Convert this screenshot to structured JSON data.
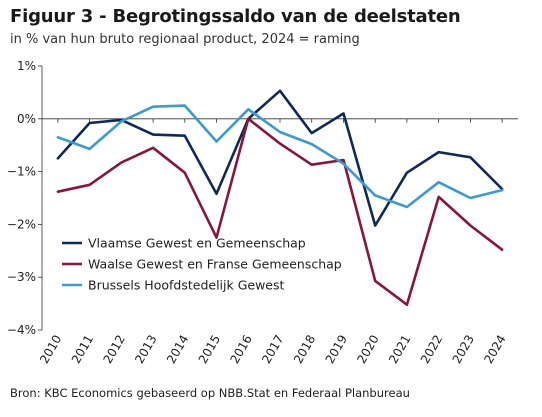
{
  "header": {
    "title": "Figuur 3 - Begrotingssaldo van de deelstaten",
    "subtitle": "in  % van hun bruto regionaal product, 2024 = raming"
  },
  "footer": {
    "source": "Bron: KBC Economics gebaseerd op NBB.Stat en Federaal Planbureau"
  },
  "chart_data": {
    "type": "line",
    "title": "Figuur 3 - Begrotingssaldo van de deelstaten",
    "subtitle": "in  % van hun bruto regionaal product, 2024 = raming",
    "x": [
      "2010",
      "2011",
      "2012",
      "2013",
      "2014",
      "2015",
      "2016",
      "2017",
      "2018",
      "2019",
      "2020",
      "2021",
      "2022",
      "2023",
      "2024"
    ],
    "ylim": [
      -4,
      1
    ],
    "yticks": [
      1,
      0,
      -1,
      -2,
      -3,
      -4
    ],
    "ytick_labels": [
      "1%",
      "0%",
      "−1%",
      "−2%",
      "−3%",
      "−4%"
    ],
    "grid": false,
    "legend_position": "lower-left",
    "series": [
      {
        "name": "Vlaamse Gewest en Gemeenschap",
        "color": "#0f2a5a",
        "values": [
          -0.75,
          -0.08,
          -0.02,
          -0.3,
          -0.32,
          -1.42,
          0.0,
          0.53,
          -0.27,
          0.1,
          -2.02,
          -1.02,
          -0.63,
          -0.73,
          -1.33
        ]
      },
      {
        "name": "Waalse Gewest en Franse Gemeenschap",
        "color": "#8a1538",
        "values": [
          -1.38,
          -1.25,
          -0.83,
          -0.55,
          -1.02,
          -2.25,
          0.0,
          -0.47,
          -0.87,
          -0.78,
          -3.07,
          -3.52,
          -1.48,
          -2.02,
          -2.48
        ]
      },
      {
        "name": "Brussels Hoofdstedelijk Gewest",
        "color": "#3a9ad3",
        "values": [
          -0.35,
          -0.57,
          -0.05,
          0.23,
          0.25,
          -0.43,
          0.18,
          -0.25,
          -0.48,
          -0.85,
          -1.45,
          -1.67,
          -1.2,
          -1.5,
          -1.35
        ]
      }
    ]
  }
}
